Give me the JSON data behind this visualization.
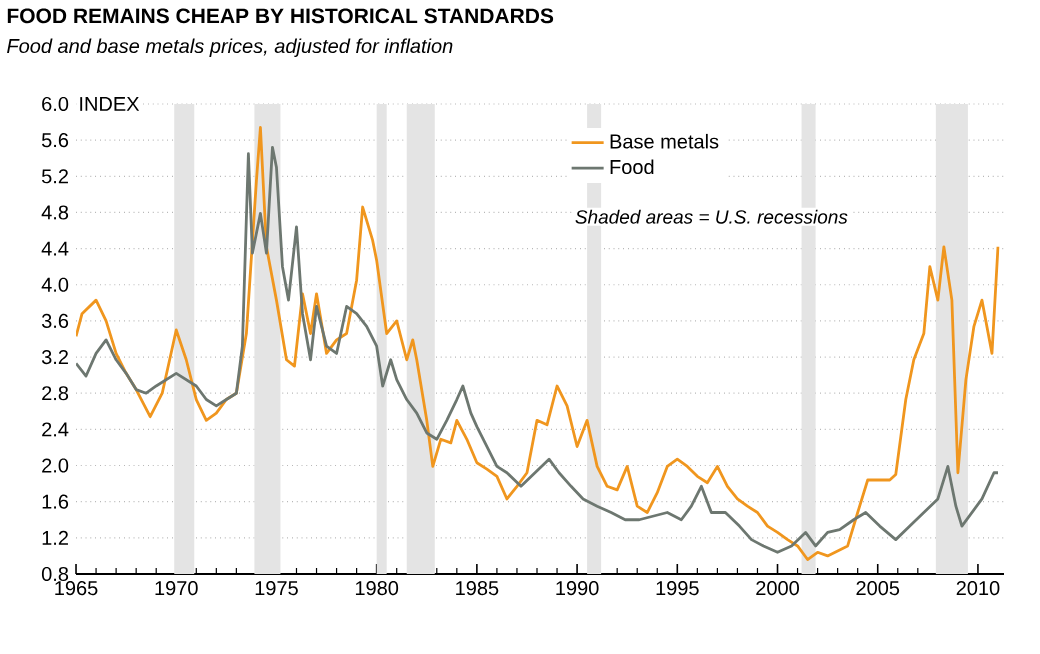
{
  "chart_data": {
    "type": "line",
    "title": "FOOD REMAINS CHEAP BY HISTORICAL STANDARDS",
    "subtitle": "Food and base metals prices, adjusted for inflation",
    "ylabel": "INDEX",
    "annotations": [
      "Shaded areas = U.S. recessions"
    ],
    "series": [
      {
        "name": "Base metals",
        "color": "#f0961e",
        "x": [
          1965,
          1965.3,
          1966,
          1966.5,
          1967,
          1967.5,
          1968,
          1968.7,
          1969.3,
          1970,
          1970.5,
          1971,
          1971.5,
          1972,
          1972.5,
          1973,
          1973.5,
          1974,
          1974.2,
          1974.5,
          1975,
          1975.5,
          1975.9,
          1976.3,
          1976.7,
          1977,
          1977.5,
          1978,
          1978.5,
          1979,
          1979.3,
          1979.8,
          1980,
          1980.5,
          1981,
          1981.5,
          1981.8,
          1982,
          1982.5,
          1982.8,
          1983.2,
          1983.7,
          1984,
          1984.5,
          1985,
          1985.5,
          1986,
          1986.5,
          1987,
          1987.5,
          1988,
          1988.5,
          1989,
          1989.5,
          1990,
          1990.5,
          1991,
          1991.5,
          1992,
          1992.5,
          1993,
          1993.5,
          1994,
          1994.5,
          1995,
          1995.5,
          1996,
          1996.5,
          1997,
          1997.5,
          1998,
          1998.5,
          1999,
          1999.5,
          2000,
          2000.5,
          2001,
          2001.5,
          2002,
          2002.5,
          2003.5,
          2004,
          2004.5,
          2005.6,
          2005.9,
          2006.4,
          2006.8,
          2007.3,
          2007.6,
          2008,
          2008.3,
          2008.7,
          2009,
          2009.4,
          2009.8,
          2010.2,
          2010.7,
          2011
        ],
        "values": [
          3.43,
          3.68,
          3.83,
          3.6,
          3.24,
          3.02,
          2.84,
          2.54,
          2.8,
          3.5,
          3.17,
          2.73,
          2.5,
          2.58,
          2.73,
          2.8,
          3.46,
          5.15,
          5.74,
          4.42,
          3.83,
          3.17,
          3.1,
          3.9,
          3.46,
          3.9,
          3.24,
          3.39,
          3.46,
          4.05,
          4.86,
          4.49,
          4.27,
          3.46,
          3.6,
          3.17,
          3.39,
          3.17,
          2.5,
          1.99,
          2.29,
          2.25,
          2.5,
          2.29,
          2.03,
          1.96,
          1.88,
          1.63,
          1.77,
          1.92,
          2.5,
          2.45,
          2.88,
          2.66,
          2.21,
          2.5,
          1.99,
          1.77,
          1.73,
          1.99,
          1.55,
          1.48,
          1.7,
          1.99,
          2.07,
          1.99,
          1.88,
          1.81,
          1.99,
          1.77,
          1.63,
          1.55,
          1.48,
          1.33,
          1.26,
          1.18,
          1.11,
          0.96,
          1.04,
          1.0,
          1.11,
          1.48,
          1.84,
          1.84,
          1.9,
          2.73,
          3.17,
          3.46,
          4.2,
          3.83,
          4.42,
          3.83,
          1.92,
          2.95,
          3.54,
          3.83,
          3.24,
          4.42
        ]
      },
      {
        "name": "Food",
        "color": "#6d7770",
        "x": [
          1965,
          1965.5,
          1966,
          1966.5,
          1967,
          1967.5,
          1968,
          1968.5,
          1969,
          1969.5,
          1970,
          1970.5,
          1971,
          1971.5,
          1972,
          1972.5,
          1973,
          1973.3,
          1973.6,
          1973.8,
          1974.2,
          1974.5,
          1974.8,
          1975,
          1975.3,
          1975.6,
          1976,
          1976.3,
          1976.7,
          1977,
          1977.5,
          1978,
          1978.5,
          1979,
          1979.5,
          1980,
          1980.3,
          1980.7,
          1981,
          1981.5,
          1982,
          1982.5,
          1983,
          1983.5,
          1984,
          1984.3,
          1984.7,
          1985,
          1985.5,
          1986,
          1986.5,
          1987.2,
          1987.9,
          1988.6,
          1989.1,
          1989.7,
          1990.3,
          1991,
          1991.7,
          1992.4,
          1993.1,
          1993.8,
          1994.5,
          1995.2,
          1995.7,
          1996.2,
          1996.7,
          1997.4,
          1998.1,
          1998.7,
          1999.3,
          2000,
          2000.7,
          2001.4,
          2001.9,
          2002.5,
          2003.1,
          2003.8,
          2004.4,
          2005.1,
          2005.9,
          2006.6,
          2007.3,
          2008,
          2008.5,
          2008.9,
          2009.2,
          2009.7,
          2010.2,
          2010.8,
          2011
        ],
        "values": [
          3.13,
          2.99,
          3.24,
          3.39,
          3.17,
          3.02,
          2.84,
          2.8,
          2.88,
          2.95,
          3.02,
          2.95,
          2.88,
          2.73,
          2.66,
          2.73,
          2.8,
          3.32,
          5.45,
          4.35,
          4.79,
          4.35,
          5.52,
          5.3,
          4.2,
          3.83,
          4.64,
          3.68,
          3.17,
          3.76,
          3.32,
          3.24,
          3.76,
          3.68,
          3.54,
          3.32,
          2.88,
          3.17,
          2.95,
          2.73,
          2.58,
          2.36,
          2.29,
          2.5,
          2.73,
          2.88,
          2.58,
          2.43,
          2.21,
          1.99,
          1.92,
          1.77,
          1.92,
          2.07,
          1.92,
          1.77,
          1.63,
          1.55,
          1.48,
          1.4,
          1.4,
          1.44,
          1.48,
          1.4,
          1.55,
          1.77,
          1.48,
          1.48,
          1.33,
          1.18,
          1.11,
          1.04,
          1.11,
          1.26,
          1.11,
          1.26,
          1.29,
          1.4,
          1.48,
          1.33,
          1.18,
          1.33,
          1.48,
          1.63,
          1.99,
          1.55,
          1.33,
          1.48,
          1.63,
          1.92,
          1.92
        ]
      }
    ],
    "bands": [
      {
        "axis": "x",
        "from": 1969.9,
        "to": 1970.9,
        "color": "#e4e4e4"
      },
      {
        "axis": "x",
        "from": 1973.9,
        "to": 1975.2,
        "color": "#e4e4e4"
      },
      {
        "axis": "x",
        "from": 1980.0,
        "to": 1980.5,
        "color": "#e4e4e4"
      },
      {
        "axis": "x",
        "from": 1981.5,
        "to": 1982.9,
        "color": "#e4e4e4"
      },
      {
        "axis": "x",
        "from": 1990.5,
        "to": 1991.2,
        "color": "#e4e4e4"
      },
      {
        "axis": "x",
        "from": 2001.2,
        "to": 2001.9,
        "color": "#e4e4e4"
      },
      {
        "axis": "x",
        "from": 2007.9,
        "to": 2009.5,
        "color": "#e4e4e4"
      }
    ],
    "xlim": [
      1965,
      2011.3
    ],
    "xticks": [
      1965,
      1970,
      1975,
      1980,
      1985,
      1990,
      1995,
      2000,
      2005,
      2010
    ],
    "ylim": [
      0.8,
      6.0
    ],
    "yticks": [
      {
        "value": 0.8,
        "label": "0.8"
      },
      {
        "value": 1.2,
        "label": "1.2"
      },
      {
        "value": 1.6,
        "label": "1.6"
      },
      {
        "value": 2.0,
        "label": "2.0"
      },
      {
        "value": 2.4,
        "label": "2.4"
      },
      {
        "value": 2.8,
        "label": "2.8"
      },
      {
        "value": 3.2,
        "label": "3.2"
      },
      {
        "value": 3.6,
        "label": "3.6"
      },
      {
        "value": 4.0,
        "label": "4.0"
      },
      {
        "value": 4.4,
        "label": "4.4"
      },
      {
        "value": 4.8,
        "label": "4.8"
      },
      {
        "value": 5.2,
        "label": "5.2"
      },
      {
        "value": 5.6,
        "label": "5.6"
      },
      {
        "value": 6.0,
        "label": "6.0"
      }
    ],
    "grid": "y",
    "legend": "top right"
  }
}
